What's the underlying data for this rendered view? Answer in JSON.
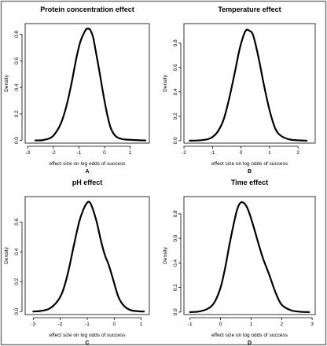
{
  "chart_data": [
    {
      "type": "line",
      "title": "Protein concentration effect",
      "xlabel": "effect size on log odds of success",
      "ylabel": "Density",
      "panel_letter": "A",
      "xlim": [
        -3.1,
        1.75
      ],
      "ylim": [
        -0.02,
        0.88
      ],
      "x_ticks": [
        -3,
        -2,
        -1,
        0,
        1
      ],
      "y_ticks": [
        0.0,
        0.2,
        0.4,
        0.6,
        0.8
      ],
      "y_tick_labels": [
        "0.0",
        "0.2",
        "0.4",
        "0.6",
        "0.8"
      ],
      "series": [
        {
          "x": [
            -2.7,
            -2.4,
            -2.1,
            -1.9,
            -1.7,
            -1.5,
            -1.3,
            -1.1,
            -0.95,
            -0.8,
            -0.7,
            -0.6,
            -0.55,
            -0.45,
            -0.35,
            -0.2,
            -0.05,
            0.1,
            0.25,
            0.45,
            0.7,
            1.0,
            1.3,
            1.6
          ],
          "y": [
            0.0,
            0.003,
            0.02,
            0.06,
            0.13,
            0.25,
            0.42,
            0.62,
            0.74,
            0.81,
            0.84,
            0.84,
            0.83,
            0.78,
            0.68,
            0.52,
            0.35,
            0.2,
            0.09,
            0.03,
            0.01,
            0.005,
            0.002,
            0.0
          ]
        }
      ]
    },
    {
      "type": "line",
      "title": "Temperature effect",
      "xlabel": "effect size on log odds of success",
      "ylabel": "Density",
      "panel_letter": "B",
      "xlim": [
        -2.0,
        2.6
      ],
      "ylim": [
        -0.02,
        0.96
      ],
      "x_ticks": [
        -2,
        -1,
        0,
        1,
        2
      ],
      "y_ticks": [
        0.0,
        0.2,
        0.4,
        0.6,
        0.8
      ],
      "y_tick_labels": [
        "0.0",
        "0.2",
        "0.4",
        "0.6",
        "0.8"
      ],
      "series": [
        {
          "x": [
            -1.8,
            -1.5,
            -1.2,
            -1.0,
            -0.8,
            -0.6,
            -0.4,
            -0.2,
            -0.05,
            0.1,
            0.2,
            0.3,
            0.4,
            0.5,
            0.65,
            0.8,
            1.0,
            1.2,
            1.4,
            1.7,
            2.0,
            2.3
          ],
          "y": [
            0.0,
            0.002,
            0.01,
            0.03,
            0.08,
            0.18,
            0.36,
            0.58,
            0.75,
            0.87,
            0.91,
            0.9,
            0.88,
            0.8,
            0.64,
            0.46,
            0.25,
            0.1,
            0.04,
            0.01,
            0.003,
            0.0
          ]
        }
      ]
    },
    {
      "type": "line",
      "title": "pH effect",
      "xlabel": "effect size on log odds of success",
      "ylabel": "Density",
      "panel_letter": "C",
      "xlim": [
        -3.3,
        1.3
      ],
      "ylim": [
        -0.02,
        0.77
      ],
      "x_ticks": [
        -3,
        -2,
        -1,
        0,
        1
      ],
      "y_ticks": [
        0.0,
        0.2,
        0.4,
        0.6
      ],
      "y_tick_labels": [
        "0.0",
        "0.2",
        "0.4",
        "0.6"
      ],
      "series": [
        {
          "x": [
            -3.0,
            -2.7,
            -2.4,
            -2.1,
            -1.9,
            -1.7,
            -1.5,
            -1.3,
            -1.15,
            -1.0,
            -0.9,
            -0.8,
            -0.65,
            -0.5,
            -0.35,
            -0.2,
            -0.05,
            0.15,
            0.35,
            0.6,
            0.9,
            1.1
          ],
          "y": [
            0.0,
            0.005,
            0.02,
            0.07,
            0.14,
            0.27,
            0.44,
            0.6,
            0.68,
            0.73,
            0.73,
            0.69,
            0.6,
            0.48,
            0.38,
            0.31,
            0.22,
            0.1,
            0.04,
            0.01,
            0.002,
            0.0
          ]
        }
      ]
    },
    {
      "type": "line",
      "title": "Time effect",
      "xlabel": "effect size on log odds of success",
      "ylabel": "Density",
      "panel_letter": "D",
      "xlim": [
        -1.2,
        3.1
      ],
      "ylim": [
        -0.02,
        0.94
      ],
      "x_ticks": [
        -1,
        0,
        1,
        2,
        3
      ],
      "y_ticks": [
        0.0,
        0.2,
        0.4,
        0.6,
        0.8
      ],
      "y_tick_labels": [
        "0.0",
        "0.2",
        "0.4",
        "0.6",
        "0.8"
      ],
      "series": [
        {
          "x": [
            -1.0,
            -0.7,
            -0.4,
            -0.2,
            0.0,
            0.15,
            0.3,
            0.45,
            0.55,
            0.65,
            0.75,
            0.85,
            0.95,
            1.1,
            1.25,
            1.4,
            1.6,
            1.8,
            2.0,
            2.3,
            2.6,
            2.9
          ],
          "y": [
            0.0,
            0.005,
            0.03,
            0.08,
            0.2,
            0.36,
            0.56,
            0.74,
            0.84,
            0.89,
            0.89,
            0.86,
            0.8,
            0.68,
            0.55,
            0.43,
            0.3,
            0.16,
            0.06,
            0.015,
            0.003,
            0.0
          ]
        }
      ]
    }
  ]
}
